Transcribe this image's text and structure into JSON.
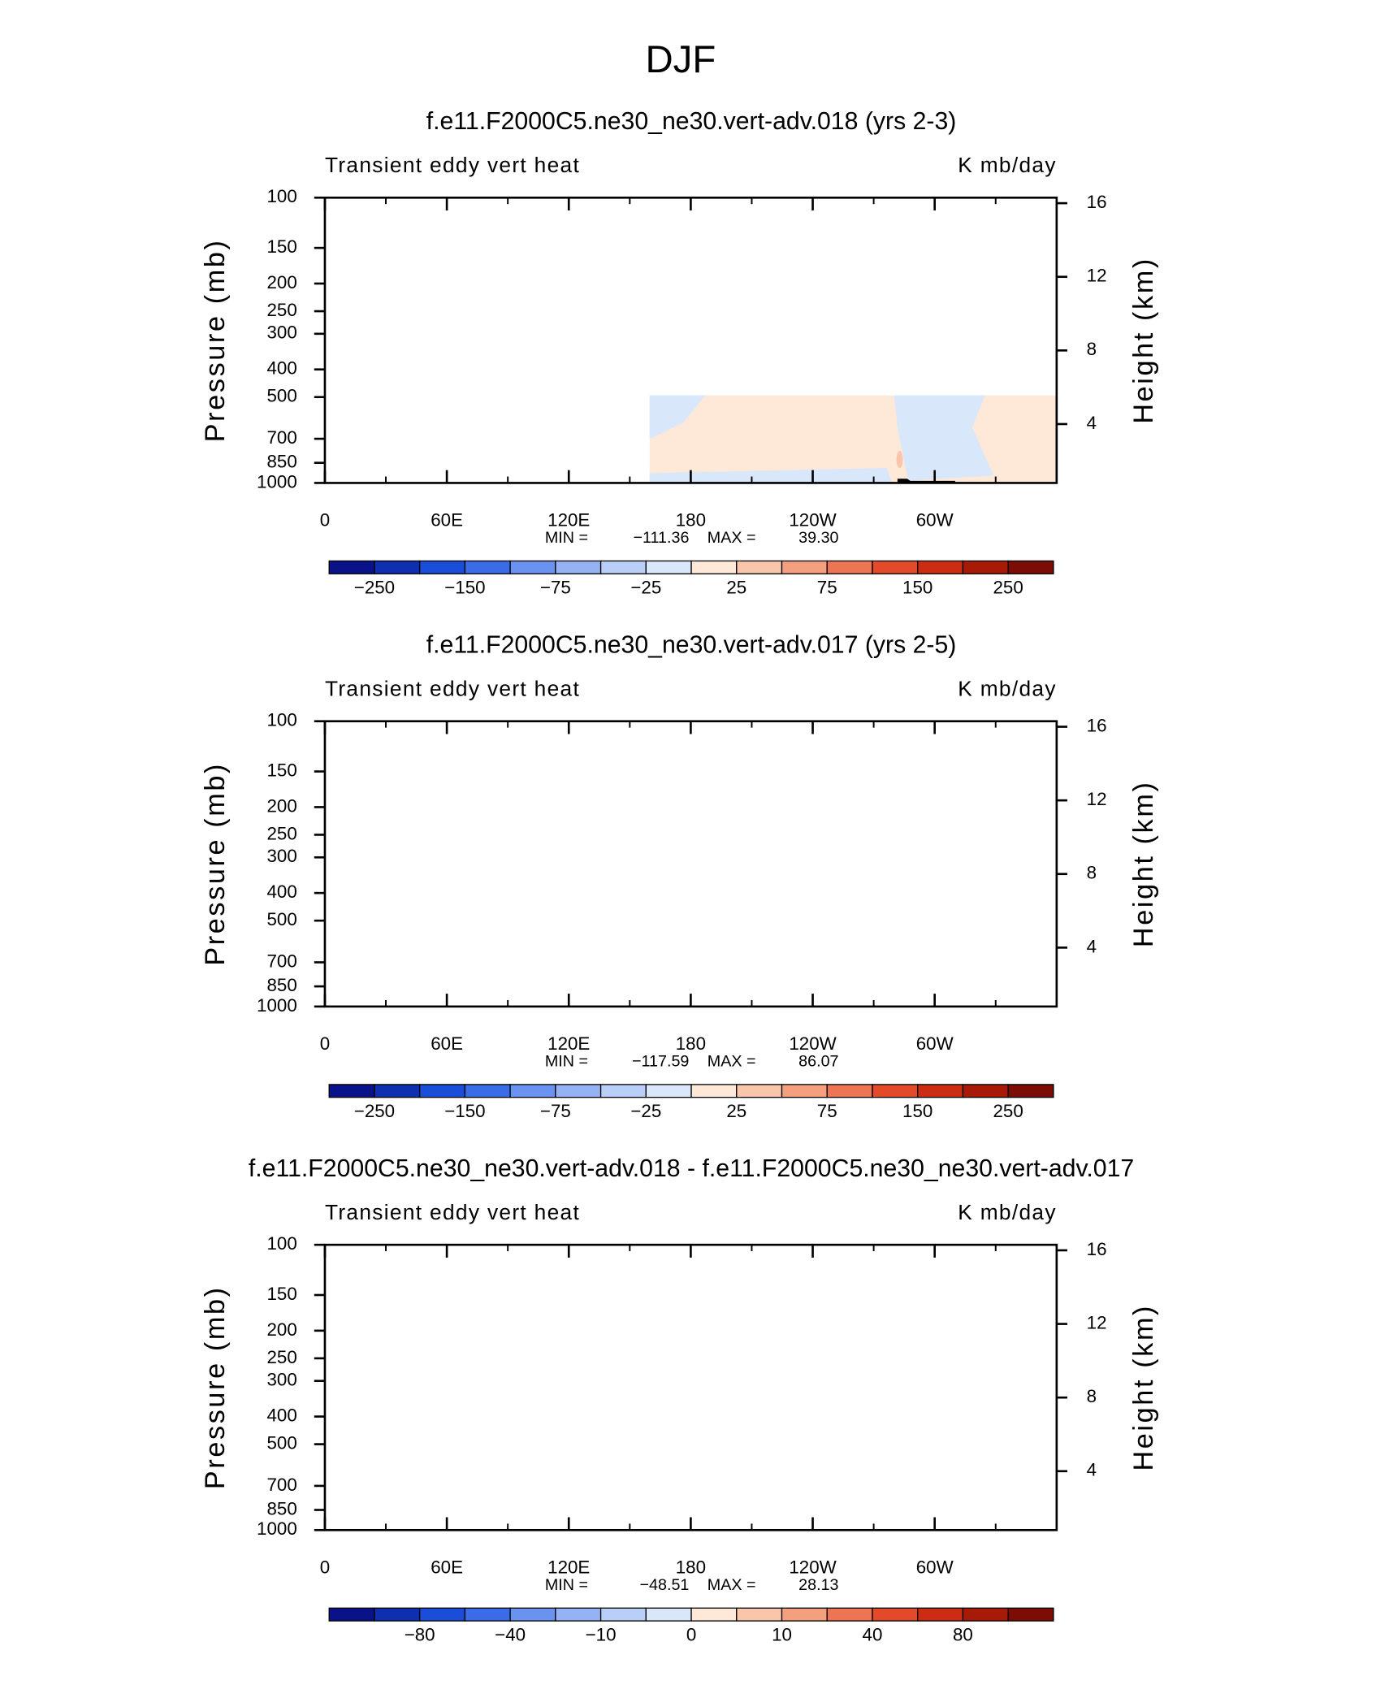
{
  "title": "DJF",
  "chart_data": [
    {
      "type": "contour",
      "title": "f.e11.F2000C5.ne30_ne30.vert-adv.018 (yrs 2-3)",
      "left_label": "Transient eddy vert heat",
      "right_label": "K mb/day",
      "ylabel": "Pressure (mb)",
      "y2label": "Height (km)",
      "yscale": "log",
      "ylim": [
        1000,
        100
      ],
      "yticks": [
        100,
        150,
        200,
        250,
        300,
        400,
        500,
        700,
        850,
        1000
      ],
      "y2lim": [
        0.8,
        16.3
      ],
      "y2ticks": [
        4,
        8,
        12,
        16
      ],
      "xlim": [
        0,
        360
      ],
      "xticks": [
        0,
        {
          "value": 60,
          "label": "60E"
        },
        {
          "value": 120,
          "label": "120E"
        },
        180,
        {
          "value": 240,
          "label": "120W"
        },
        {
          "value": 300,
          "label": "60W"
        }
      ],
      "stats": {
        "names": [
          "MIN =",
          "MAX ="
        ],
        "values": [
          -111.36,
          39.3
        ],
        "value_labels": [
          "−111.36",
          "39.30"
        ]
      },
      "colorbar": {
        "colors": [
          "#0a128a",
          "#0d2fb0",
          "#1a4ed8",
          "#3a6ce8",
          "#6a92f0",
          "#95b3f4",
          "#b9cff7",
          "#d9e7fb",
          "#fee8d8",
          "#f9c6ab",
          "#f4a07f",
          "#ee7553",
          "#e34a2a",
          "#cb2c12",
          "#a81a08",
          "#7c0d04"
        ],
        "labels": [
          {
            "value": -250,
            "label": "−250"
          },
          {
            "value": -150,
            "label": "−150"
          },
          {
            "value": -75,
            "label": "−75"
          },
          {
            "value": -25,
            "label": "−25"
          },
          25,
          75,
          150,
          250
        ]
      }
    },
    {
      "type": "contour",
      "title": "f.e11.F2000C5.ne30_ne30.vert-adv.017 (yrs 2-5)",
      "left_label": "Transient eddy vert heat",
      "right_label": "K mb/day",
      "ylabel": "Pressure (mb)",
      "y2label": "Height (km)",
      "yscale": "log",
      "ylim": [
        1000,
        100
      ],
      "yticks": [
        100,
        150,
        200,
        250,
        300,
        400,
        500,
        700,
        850,
        1000
      ],
      "y2lim": [
        0.8,
        16.3
      ],
      "y2ticks": [
        4,
        8,
        12,
        16
      ],
      "xlim": [
        0,
        360
      ],
      "xticks": [
        0,
        {
          "value": 60,
          "label": "60E"
        },
        {
          "value": 120,
          "label": "120E"
        },
        180,
        {
          "value": 240,
          "label": "120W"
        },
        {
          "value": 300,
          "label": "60W"
        }
      ],
      "stats": {
        "names": [
          "MIN =",
          "MAX ="
        ],
        "values": [
          -117.59,
          86.07
        ],
        "value_labels": [
          "−117.59",
          "86.07"
        ]
      },
      "colorbar": {
        "colors": [
          "#0a128a",
          "#0d2fb0",
          "#1a4ed8",
          "#3a6ce8",
          "#6a92f0",
          "#95b3f4",
          "#b9cff7",
          "#d9e7fb",
          "#fee8d8",
          "#f9c6ab",
          "#f4a07f",
          "#ee7553",
          "#e34a2a",
          "#cb2c12",
          "#a81a08",
          "#7c0d04"
        ],
        "labels": [
          {
            "value": -250,
            "label": "−250"
          },
          {
            "value": -150,
            "label": "−150"
          },
          {
            "value": -75,
            "label": "−75"
          },
          {
            "value": -25,
            "label": "−25"
          },
          25,
          75,
          150,
          250
        ]
      }
    },
    {
      "type": "contour",
      "title": "f.e11.F2000C5.ne30_ne30.vert-adv.018 - f.e11.F2000C5.ne30_ne30.vert-adv.017",
      "left_label": "Transient eddy vert heat",
      "right_label": "K mb/day",
      "ylabel": "Pressure (mb)",
      "y2label": "Height (km)",
      "yscale": "log",
      "ylim": [
        1000,
        100
      ],
      "yticks": [
        100,
        150,
        200,
        250,
        300,
        400,
        500,
        700,
        850,
        1000
      ],
      "y2lim": [
        0.8,
        16.3
      ],
      "y2ticks": [
        4,
        8,
        12,
        16
      ],
      "xlim": [
        0,
        360
      ],
      "xticks": [
        0,
        {
          "value": 60,
          "label": "60E"
        },
        {
          "value": 120,
          "label": "120E"
        },
        180,
        {
          "value": 240,
          "label": "120W"
        },
        {
          "value": 300,
          "label": "60W"
        }
      ],
      "stats": {
        "names": [
          "MIN =",
          "MAX ="
        ],
        "values": [
          -48.51,
          28.13
        ],
        "value_labels": [
          "−48.51",
          "28.13"
        ]
      },
      "colorbar": {
        "colors": [
          "#0a128a",
          "#0d2fb0",
          "#1a4ed8",
          "#3a6ce8",
          "#6a92f0",
          "#95b3f4",
          "#b9cff7",
          "#d9e7fb",
          "#fee8d8",
          "#f9c6ab",
          "#f4a07f",
          "#ee7553",
          "#e34a2a",
          "#cb2c12",
          "#a81a08",
          "#7c0d04"
        ],
        "labels": [
          {
            "value": -80,
            "label": "−80"
          },
          {
            "value": -40,
            "label": "−40"
          },
          {
            "value": -10,
            "label": "−10"
          },
          0,
          10,
          40,
          80
        ]
      }
    }
  ]
}
